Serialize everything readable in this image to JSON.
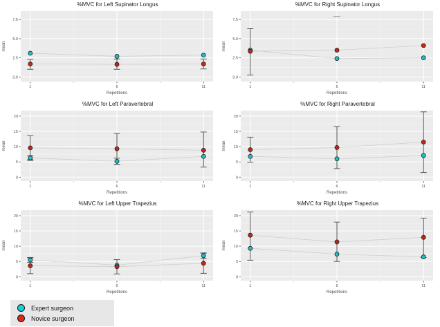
{
  "palette": {
    "expert_color": "#1fbfc3",
    "novice_color": "#c1281c",
    "point_stroke": "#1f1f1f",
    "errorbar_color": "#5a5a5a",
    "floating_cap_color": "#9a9a9a",
    "trend_line_color": "#cfcfcf",
    "panel_bg": "#ebebeb",
    "grid_major": "#ffffff",
    "grid_minor": "#f4f4f4",
    "tick_text": "#4d4d4d",
    "axis_tick_mark": "#333333"
  },
  "legend": {
    "items": [
      {
        "label": "Expert surgeon",
        "color": "#12d2d8"
      },
      {
        "label": "Novice surgeon",
        "color": "#da2a1c"
      }
    ]
  },
  "chart_data": [
    {
      "type": "line",
      "title": "%MVC for Left Supinator Longus",
      "xlabel": "Repetitions",
      "ylabel": "mean",
      "x_ticks": [
        1,
        6,
        11
      ],
      "x_tick_labels": [
        "1",
        "6",
        "11"
      ],
      "x_minor_ticks": [
        3.5,
        8.5
      ],
      "x_range": [
        0.45,
        11.55
      ],
      "y_ticks": [
        0,
        2.5,
        5,
        7.5
      ],
      "y_tick_labels": [
        "0.0",
        "2.5",
        "5.0",
        "7.5"
      ],
      "ylim": [
        -0.6,
        8.6
      ],
      "series": [
        {
          "name": "Expert surgeon",
          "points": [
            {
              "x": 1,
              "y": 3.1
            },
            {
              "x": 6,
              "y": 2.7
            },
            {
              "x": 11,
              "y": 2.85
            }
          ]
        },
        {
          "name": "Novice surgeon",
          "points": [
            {
              "x": 1,
              "y": 1.7,
              "lo": 1.0,
              "hi": 2.3
            },
            {
              "x": 6,
              "y": 1.65,
              "lo": 1.0,
              "hi": 2.35
            },
            {
              "x": 11,
              "y": 1.7,
              "lo": 1.05,
              "hi": 2.35
            }
          ]
        }
      ],
      "extra_caps": []
    },
    {
      "type": "line",
      "title": "%MVC for Right Supinator Longus",
      "xlabel": "Repetitions",
      "ylabel": "mean",
      "x_ticks": [
        1,
        6,
        11
      ],
      "x_tick_labels": [
        "1",
        "6",
        "11"
      ],
      "x_minor_ticks": [
        3.5,
        8.5
      ],
      "x_range": [
        0.45,
        11.55
      ],
      "y_ticks": [
        0,
        2.5,
        5,
        7.5
      ],
      "y_tick_labels": [
        "0.0",
        "2.5",
        "5.0",
        "7.5"
      ],
      "ylim": [
        -0.6,
        8.6
      ],
      "series": [
        {
          "name": "Expert surgeon",
          "points": [
            {
              "x": 1,
              "y": 3.5
            },
            {
              "x": 6,
              "y": 2.4
            },
            {
              "x": 11,
              "y": 2.5
            }
          ]
        },
        {
          "name": "Novice surgeon",
          "points": [
            {
              "x": 1,
              "y": 3.35,
              "lo": 0.25,
              "hi": 6.3
            },
            {
              "x": 6,
              "y": 3.5
            },
            {
              "x": 11,
              "y": 4.1
            }
          ]
        }
      ],
      "extra_caps": [
        {
          "x": 6,
          "y": 7.9
        }
      ]
    },
    {
      "type": "line",
      "title": "%MVC for Left Paravertebral",
      "xlabel": "Repetitions",
      "ylabel": "mean",
      "x_ticks": [
        1,
        6,
        11
      ],
      "x_tick_labels": [
        "1",
        "6",
        "11"
      ],
      "x_minor_ticks": [
        3.5,
        8.5
      ],
      "x_range": [
        0.45,
        11.55
      ],
      "y_ticks": [
        0,
        5,
        10,
        15,
        20
      ],
      "y_tick_labels": [
        "0",
        "5",
        "10",
        "15",
        "20"
      ],
      "ylim": [
        -1.3,
        21.8
      ],
      "series": [
        {
          "name": "Expert surgeon",
          "points": [
            {
              "x": 1,
              "y": 6.3,
              "lo": 5.5,
              "hi": 7.1
            },
            {
              "x": 6,
              "y": 5.2,
              "lo": 4.2,
              "hi": 6.2
            },
            {
              "x": 11,
              "y": 6.8
            }
          ]
        },
        {
          "name": "Novice surgeon",
          "points": [
            {
              "x": 1,
              "y": 9.6,
              "lo": 5.7,
              "hi": 13.6
            },
            {
              "x": 6,
              "y": 9.3,
              "lo": 4.2,
              "hi": 14.3
            },
            {
              "x": 11,
              "y": 8.8,
              "lo": 3.3,
              "hi": 14.8
            }
          ]
        }
      ],
      "extra_caps": []
    },
    {
      "type": "line",
      "title": "%MVC for Right Paravertebral",
      "xlabel": "Repetitions",
      "ylabel": "mean",
      "x_ticks": [
        1,
        6,
        11
      ],
      "x_tick_labels": [
        "1",
        "6",
        "11"
      ],
      "x_minor_ticks": [
        3.5,
        8.5
      ],
      "x_range": [
        0.45,
        11.55
      ],
      "y_ticks": [
        0,
        5,
        10,
        15,
        20
      ],
      "y_tick_labels": [
        "0",
        "5",
        "10",
        "15",
        "20"
      ],
      "ylim": [
        -1.3,
        21.8
      ],
      "series": [
        {
          "name": "Expert surgeon",
          "points": [
            {
              "x": 1,
              "y": 6.8
            },
            {
              "x": 6,
              "y": 6.0
            },
            {
              "x": 11,
              "y": 7.1
            }
          ]
        },
        {
          "name": "Novice surgeon",
          "points": [
            {
              "x": 1,
              "y": 9.0,
              "lo": 4.9,
              "hi": 13.1
            },
            {
              "x": 6,
              "y": 9.7,
              "lo": 2.8,
              "hi": 16.6
            },
            {
              "x": 11,
              "y": 11.5,
              "lo": 1.5,
              "hi": 21.4
            }
          ]
        }
      ],
      "extra_caps": []
    },
    {
      "type": "line",
      "title": "%MVC for Left Upper Trapezius",
      "xlabel": "Repetitions",
      "ylabel": "mean",
      "x_ticks": [
        1,
        6,
        11
      ],
      "x_tick_labels": [
        "1",
        "6",
        "11"
      ],
      "x_minor_ticks": [
        3.5,
        8.5
      ],
      "x_range": [
        0.45,
        11.55
      ],
      "y_ticks": [
        0,
        5,
        10,
        15,
        20
      ],
      "y_tick_labels": [
        "0",
        "5",
        "10",
        "15",
        "20"
      ],
      "ylim": [
        -1.3,
        21.8
      ],
      "series": [
        {
          "name": "Expert surgeon",
          "points": [
            {
              "x": 1,
              "y": 5.5,
              "lo": 4.7,
              "hi": 6.3
            },
            {
              "x": 6,
              "y": 3.8
            },
            {
              "x": 11,
              "y": 6.9,
              "lo": 6.0,
              "hi": 7.8
            }
          ]
        },
        {
          "name": "Novice surgeon",
          "points": [
            {
              "x": 1,
              "y": 3.6,
              "lo": 1.0,
              "hi": 6.2
            },
            {
              "x": 6,
              "y": 3.3,
              "lo": 0.9,
              "hi": 5.6
            },
            {
              "x": 11,
              "y": 4.4,
              "lo": 1.1,
              "hi": 7.7
            }
          ]
        }
      ],
      "extra_caps": []
    },
    {
      "type": "line",
      "title": "%MVC for Right Upper Trapezius",
      "xlabel": "Repetitions",
      "ylabel": "mean",
      "x_ticks": [
        1,
        6,
        11
      ],
      "x_tick_labels": [
        "1",
        "6",
        "11"
      ],
      "x_minor_ticks": [
        3.5,
        8.5
      ],
      "x_range": [
        0.45,
        11.55
      ],
      "y_ticks": [
        0,
        5,
        10,
        15,
        20
      ],
      "y_tick_labels": [
        "0",
        "5",
        "10",
        "15",
        "20"
      ],
      "ylim": [
        -1.3,
        21.8
      ],
      "series": [
        {
          "name": "Expert surgeon",
          "points": [
            {
              "x": 1,
              "y": 9.3
            },
            {
              "x": 6,
              "y": 7.4
            },
            {
              "x": 11,
              "y": 6.5
            }
          ]
        },
        {
          "name": "Novice surgeon",
          "points": [
            {
              "x": 1,
              "y": 13.6,
              "lo": 5.4,
              "hi": 21.2
            },
            {
              "x": 6,
              "y": 11.4,
              "lo": 5.0,
              "hi": 17.9
            },
            {
              "x": 11,
              "y": 12.9,
              "lo": 6.3,
              "hi": 19.2
            }
          ]
        }
      ],
      "extra_caps": []
    }
  ]
}
